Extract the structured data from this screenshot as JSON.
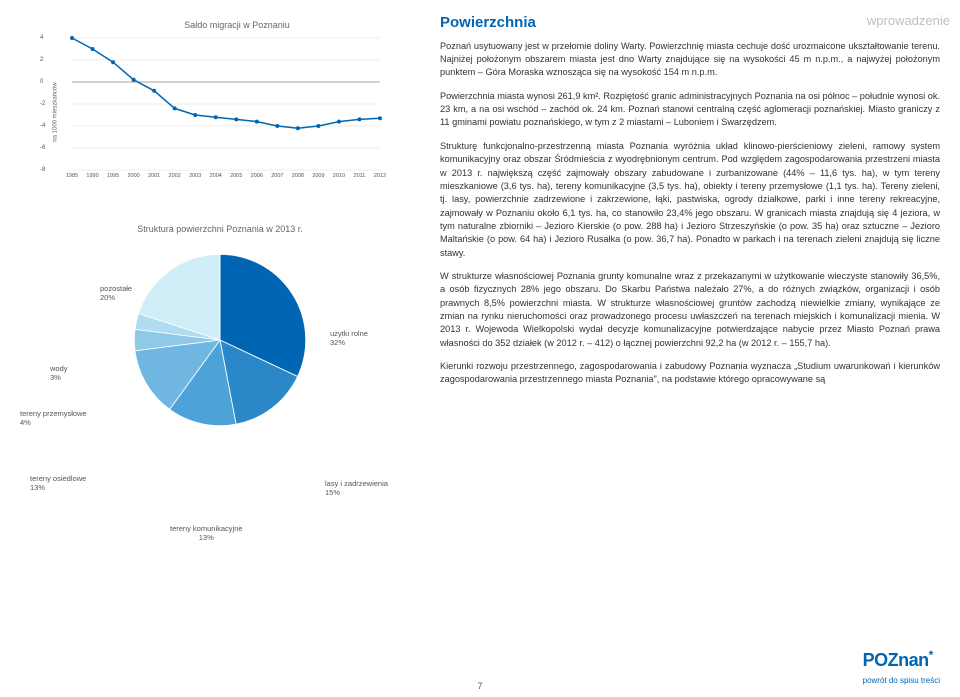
{
  "header": {
    "title": "Powierzchnia",
    "side": "wprowadzenie"
  },
  "line_chart": {
    "title": "Saldo migracji w Poznaniu",
    "y_label": "na 1000 mieszkańców",
    "type": "line",
    "years": [
      "1985",
      "1990",
      "1995",
      "2000",
      "2001",
      "2002",
      "2003",
      "2004",
      "2005",
      "2006",
      "2007",
      "2008",
      "2009",
      "2010",
      "2011",
      "2012"
    ],
    "values": [
      4.0,
      3.0,
      1.8,
      0.2,
      -0.8,
      -2.4,
      -3.0,
      -3.2,
      -3.4,
      -3.6,
      -4.0,
      -4.2,
      -4.0,
      -3.6,
      -3.4,
      -3.3
    ],
    "ylim": [
      -8,
      4
    ],
    "ytick_step": 2,
    "line_color": "#0066b3",
    "grid_color": "#d9d9d9",
    "axis_color": "#888",
    "background_color": "#ffffff"
  },
  "pie_chart": {
    "title": "Struktura powierzchni Poznania w 2013 r.",
    "type": "pie",
    "slices": [
      {
        "label": "użytki rolne",
        "pct": "32%",
        "value": 32,
        "color": "#0066b3"
      },
      {
        "label": "lasy i zadrzewienia",
        "pct": "15%",
        "value": 15,
        "color": "#2a88c9"
      },
      {
        "label": "tereny komunikacyjne",
        "pct": "13%",
        "value": 13,
        "color": "#4da2d8"
      },
      {
        "label": "tereny osiedlowe",
        "pct": "13%",
        "value": 13,
        "color": "#6fb6e0"
      },
      {
        "label": "tereny przemysłowe",
        "pct": "4%",
        "value": 4,
        "color": "#8fc9e8"
      },
      {
        "label": "wody",
        "pct": "3%",
        "value": 3,
        "color": "#afdcf0"
      },
      {
        "label": "pozostałe",
        "pct": "20%",
        "value": 20,
        "color": "#d0eef8"
      }
    ],
    "background_color": "#ffffff"
  },
  "body": {
    "p1": "Poznań usytuowany jest w przełomie doliny Warty. Powierzchnię miasta cechuje dość urozmaicone ukształtowanie terenu. Najniżej położonym obszarem miasta jest dno Warty znajdujące się na wysokości 45 m n.p.m., a najwyżej położonym punktem – Góra Moraska wznosząca się na wysokość 154 m n.p.m.",
    "p2": "Powierzchnia miasta wynosi 261,9 km². Rozpiętość granic administracyjnych Poznania na osi północ – południe wynosi ok. 23 km, a na osi wschód – zachód ok. 24 km. Poznań stanowi centralną część aglomeracji poznańskiej. Miasto graniczy z 11 gminami powiatu poznańskiego, w tym z 2 miastami – Luboniem i Swarzędzem.",
    "p3": "Strukturę funkcjonalno-przestrzenną miasta Poznania wyróżnia układ klinowo-pierścieniowy zieleni, ramowy system komunikacyjny oraz obszar Śródmieścia z wyodrębnionym centrum. Pod względem zagospodarowania przestrzeni miasta w 2013 r. największą część zajmowały obszary zabudowane i zurbanizowane (44% – 11,6 tys. ha), w tym tereny mieszkaniowe (3,6 tys. ha), tereny komunikacyjne (3,5 tys. ha), obiekty i tereny przemysłowe (1,1 tys. ha). Tereny zieleni, tj. lasy, powierzchnie zadrzewione i zakrzewione, łąki, pastwiska, ogrody działkowe, parki i inne tereny rekreacyjne, zajmowały w Poznaniu około 6,1 tys. ha, co stanowiło 23,4% jego obszaru. W granicach miasta znajdują się 4 jeziora, w tym naturalne zbiorniki – Jezioro Kierskie (o pow. 288 ha) i Jezioro Strzeszyńskie (o pow. 35 ha) oraz sztuczne – Jezioro Maltańskie (o pow. 64 ha) i Jezioro Rusałka (o pow. 36,7 ha). Ponadto w parkach i na terenach zieleni znajdują się liczne stawy.",
    "p4": "W strukturze własnościowej Poznania grunty komunalne wraz z przekazanymi w użytkowanie wieczyste stanowiły 36,5%, a osób fizycznych 28% jego obszaru. Do Skarbu Państwa należało 27%, a do różnych związków, organizacji i osób prawnych 8,5% powierzchni miasta. W strukturze własnościowej gruntów zachodzą niewielkie zmiany, wynikające ze zmian na rynku nieruchomości oraz prowadzonego procesu uwłaszczeń na terenach miejskich i komunalizacji mienia. W 2013 r. Wojewoda Wielkopolski wydał decyzje komunalizacyjne potwierdzające nabycie przez Miasto Poznań prawa własności do 352 działek (w 2012 r. – 412) o łącznej powierzchni 92,2 ha (w 2012 r. – 155,7 ha).",
    "p5": "Kierunki rozwoju przestrzennego, zagospodarowania i zabudowy Poznania wyznacza „Studium uwarunkowań i kierunków zagospodarowania przestrzennego miasta Poznania\", na podstawie którego opracowywane są"
  },
  "footer": {
    "logo_a": "POZ",
    "logo_b": "nan",
    "back": "powrót do spisu treści",
    "page": "7"
  }
}
